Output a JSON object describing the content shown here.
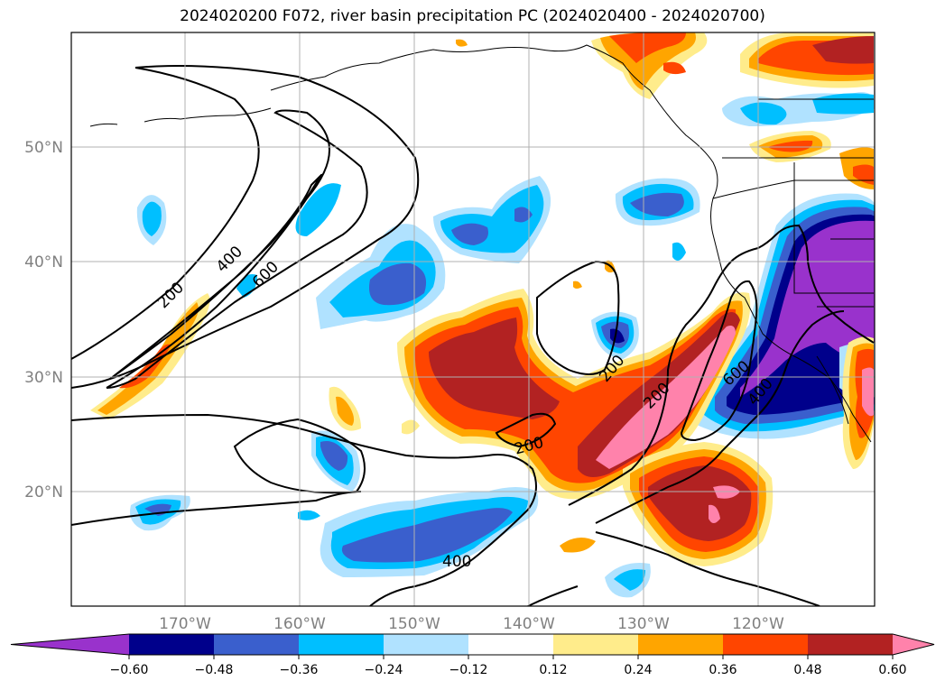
{
  "title": "2024020200 F072, river basin precipitation PC (2024020400 - 2024020700)",
  "longitude_labels": [
    "170°W",
    "160°W",
    "150°W",
    "140°W",
    "130°W",
    "120°W"
  ],
  "latitude_labels": [
    "50°N",
    "40°N",
    "30°N",
    "20°N"
  ],
  "contour_labels": [
    "200",
    "400",
    "600",
    "200",
    "200",
    "200",
    "400",
    "600",
    "400"
  ],
  "colorbar": {
    "ticks": [
      "−0.60",
      "−0.48",
      "−0.36",
      "−0.24",
      "−0.12",
      "0.12",
      "0.24",
      "0.36",
      "0.48",
      "0.60"
    ],
    "colors": [
      "#9932cc",
      "#00008b",
      "#3a5fcd",
      "#00bfff",
      "#b0e2ff",
      "#ffffff",
      "#ffec8b",
      "#ffa500",
      "#ff4500",
      "#b22222",
      "#ff82ab"
    ]
  },
  "colors": {
    "coast": "#000000",
    "grid": "#b0b0b0",
    "contour": "#000000"
  }
}
